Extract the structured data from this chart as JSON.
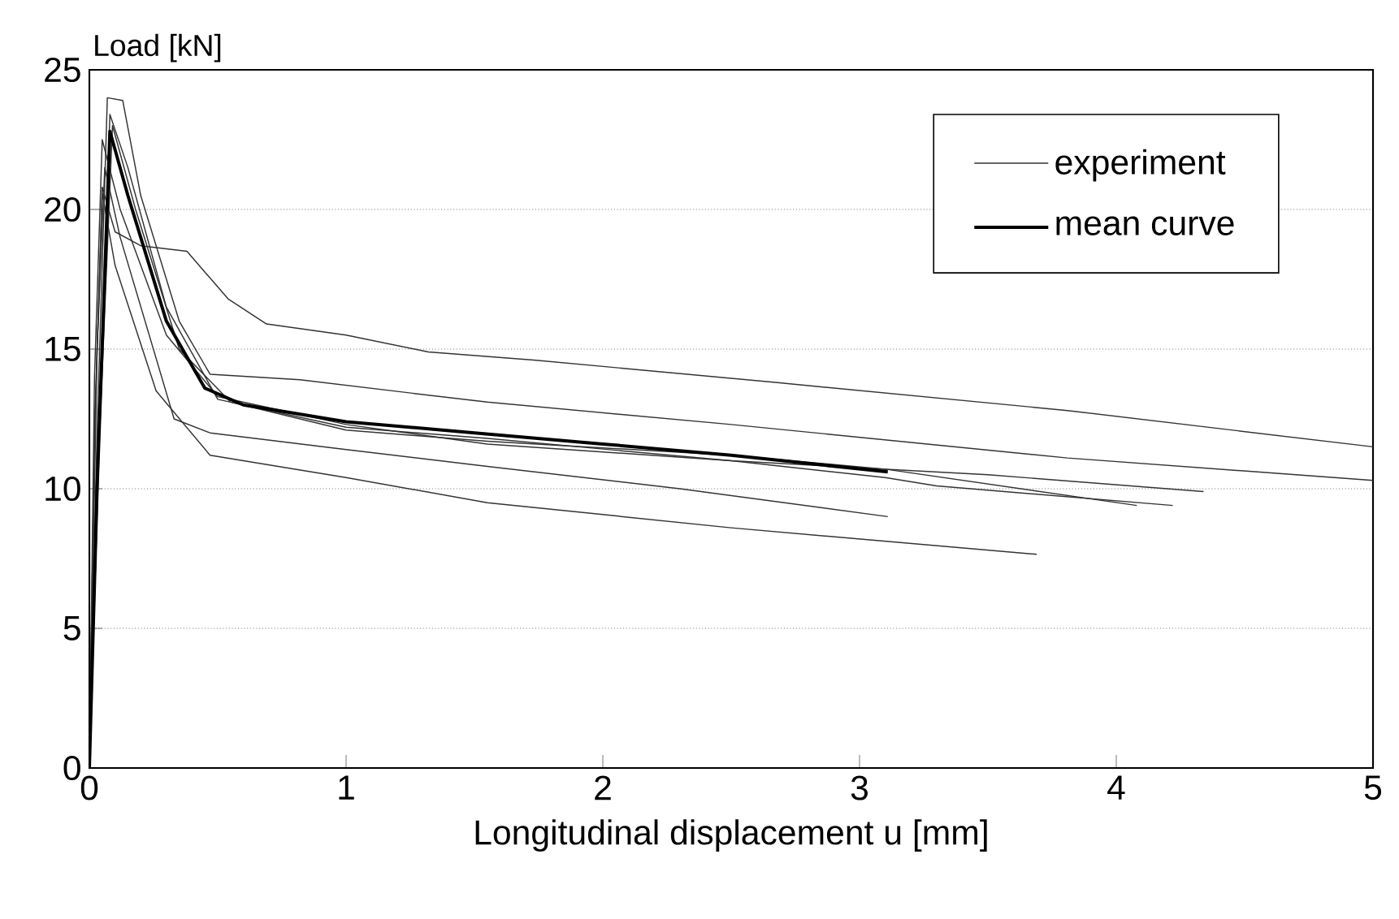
{
  "chart_data": {
    "type": "line",
    "xlabel": "Longitudinal displacement u [mm]",
    "ylabel": "Load [kN]",
    "xlim": [
      0,
      5
    ],
    "ylim": [
      0,
      25
    ],
    "xticks": [
      0,
      1,
      2,
      3,
      4,
      5
    ],
    "yticks": [
      0,
      5,
      10,
      15,
      20,
      25
    ],
    "grid": "y",
    "legend": "top right",
    "line_style": "solid",
    "marker": "none",
    "series": [
      {
        "name": "experiment",
        "color": "#333333",
        "x": [
          0,
          0.02,
          0.05,
          0.1,
          0.2,
          0.38,
          0.54,
          0.69,
          1.0,
          1.32,
          1.74,
          2.68,
          3.81,
          5
        ],
        "values": [
          0,
          12,
          20.8,
          19.2,
          18.7,
          18.5,
          16.8,
          15.9,
          15.5,
          14.9,
          14.6,
          13.8,
          12.8,
          11.5
        ]
      },
      {
        "color": "#333333",
        "x": [
          0,
          0.03,
          0.07,
          0.13,
          0.2,
          0.35,
          0.47,
          0.82,
          1.55,
          2.5,
          3.81,
          5
        ],
        "values": [
          0,
          12,
          24.0,
          23.9,
          20.5,
          16,
          14.1,
          13.9,
          13.1,
          12.3,
          11.1,
          10.3
        ]
      },
      {
        "color": "#333333",
        "x": [
          0,
          0.03,
          0.08,
          0.15,
          0.3,
          0.5,
          1,
          1.55,
          2.5,
          3.5,
          4.34
        ],
        "values": [
          0,
          10,
          23.4,
          21.5,
          16.5,
          13.2,
          12.2,
          11.8,
          11.0,
          10.5,
          9.9
        ]
      },
      {
        "color": "#333333",
        "x": [
          0,
          0.02,
          0.05,
          0.12,
          0.3,
          0.5,
          1,
          1.55,
          2.5,
          3.1,
          3.3,
          4.22
        ],
        "values": [
          0,
          14,
          22.5,
          20,
          15.5,
          13.3,
          12.3,
          11.6,
          11.0,
          10.4,
          10.1,
          9.4
        ]
      },
      {
        "color": "#333333",
        "x": [
          0,
          0.04,
          0.09,
          0.18,
          0.35,
          0.55,
          1,
          1.55,
          2.5,
          3.1,
          4.08
        ],
        "values": [
          0,
          12,
          23.0,
          20.0,
          15.0,
          13.1,
          12.1,
          11.7,
          11.2,
          10.7,
          9.4
        ]
      },
      {
        "color": "#333333",
        "x": [
          0,
          0.03,
          0.06,
          0.12,
          0.33,
          0.47,
          1,
          1.55,
          2.3,
          3.11
        ],
        "values": [
          0,
          15,
          21.5,
          19.0,
          12.5,
          12.0,
          11.4,
          10.8,
          10.0,
          9.0
        ]
      },
      {
        "color": "#333333",
        "x": [
          0,
          0.02,
          0.05,
          0.1,
          0.26,
          0.47,
          1,
          1.55,
          2.5,
          3.69
        ],
        "values": [
          0,
          12,
          20.6,
          18,
          13.5,
          11.2,
          10.4,
          9.5,
          8.6,
          7.65
        ]
      },
      {
        "name": "mean curve",
        "color": "#000000",
        "x": [
          0,
          0.03,
          0.08,
          0.15,
          0.3,
          0.45,
          0.6,
          1,
          1.5,
          2,
          2.5,
          3.11
        ],
        "values": [
          0,
          10,
          22.8,
          20.5,
          16,
          13.6,
          13.0,
          12.4,
          12.0,
          11.6,
          11.2,
          10.6
        ]
      }
    ]
  }
}
